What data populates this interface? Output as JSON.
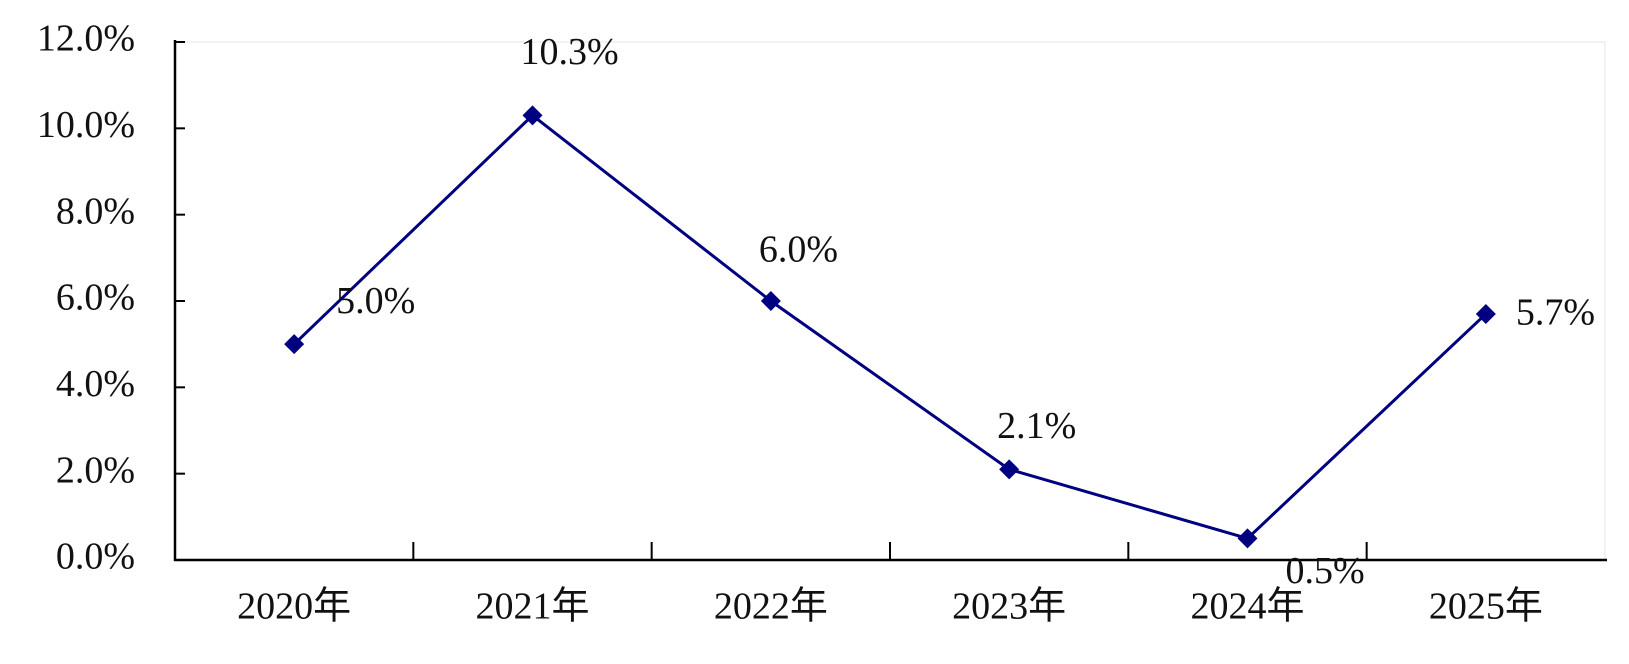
{
  "chart_data": {
    "type": "line",
    "categories": [
      "2020年",
      "2021年",
      "2022年",
      "2023年",
      "2024年",
      "2025年"
    ],
    "values": [
      5.0,
      10.3,
      6.0,
      2.1,
      0.5,
      5.7
    ],
    "value_labels": [
      "5.0%",
      "10.3%",
      "6.0%",
      "2.1%",
      "0.5%",
      "5.7%"
    ],
    "color": "#000080",
    "ylim": [
      0,
      12
    ],
    "yticks": [
      {
        "value": 0,
        "label": "0.0%"
      },
      {
        "value": 2,
        "label": "2.0%"
      },
      {
        "value": 4,
        "label": "4.0%"
      },
      {
        "value": 6,
        "label": "6.0%"
      },
      {
        "value": 8,
        "label": "8.0%"
      },
      {
        "value": 10,
        "label": "10.0%"
      },
      {
        "value": 12,
        "label": "12.0%"
      }
    ],
    "grid": false
  }
}
